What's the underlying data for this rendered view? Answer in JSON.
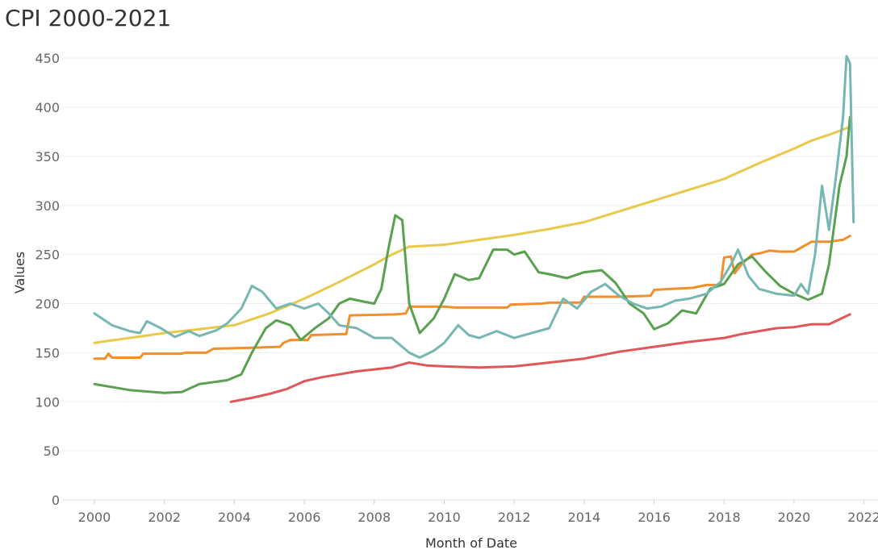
{
  "chart_data": {
    "type": "line",
    "title": "CPI 2000-2021",
    "xlabel": "Month of Date",
    "ylabel": "Values",
    "xlim": [
      1999.1,
      2022.4
    ],
    "ylim": [
      0,
      460
    ],
    "x_ticks": [
      2000,
      2002,
      2004,
      2006,
      2008,
      2010,
      2012,
      2014,
      2016,
      2018,
      2020,
      2022
    ],
    "x_tick_labels": [
      "2000",
      "2002",
      "2004",
      "2006",
      "2008",
      "2010",
      "2012",
      "2014",
      "2016",
      "2018",
      "2020",
      "2022"
    ],
    "y_ticks": [
      0,
      50,
      100,
      150,
      200,
      250,
      300,
      350,
      400,
      450
    ],
    "y_tick_labels": [
      "0",
      "50",
      "100",
      "150",
      "200",
      "250",
      "300",
      "350",
      "400",
      "450"
    ],
    "grid": true,
    "series": [
      {
        "color": "#e9c84a",
        "points": [
          [
            2000.0,
            160
          ],
          [
            2001.0,
            165
          ],
          [
            2002.0,
            170
          ],
          [
            2003.0,
            174
          ],
          [
            2004.0,
            178
          ],
          [
            2005.0,
            190
          ],
          [
            2006.0,
            205
          ],
          [
            2007.0,
            222
          ],
          [
            2008.0,
            240
          ],
          [
            2008.5,
            250
          ],
          [
            2009.0,
            258
          ],
          [
            2009.5,
            259
          ],
          [
            2010.0,
            260
          ],
          [
            2011.0,
            265
          ],
          [
            2012.0,
            270
          ],
          [
            2013.0,
            276
          ],
          [
            2014.0,
            283
          ],
          [
            2015.0,
            294
          ],
          [
            2016.0,
            305
          ],
          [
            2017.0,
            316
          ],
          [
            2018.0,
            327
          ],
          [
            2019.0,
            343
          ],
          [
            2020.0,
            358
          ],
          [
            2020.5,
            366
          ],
          [
            2021.0,
            372
          ],
          [
            2021.6,
            380
          ]
        ]
      },
      {
        "color": "#f28e2b",
        "points": [
          [
            2000.0,
            144
          ],
          [
            2000.3,
            144
          ],
          [
            2000.4,
            149
          ],
          [
            2000.5,
            145
          ],
          [
            2001.0,
            145
          ],
          [
            2001.3,
            145
          ],
          [
            2001.4,
            149
          ],
          [
            2002.5,
            149
          ],
          [
            2002.6,
            150
          ],
          [
            2003.2,
            150
          ],
          [
            2003.4,
            154
          ],
          [
            2004.5,
            155
          ],
          [
            2005.3,
            156
          ],
          [
            2005.4,
            160
          ],
          [
            2005.6,
            163
          ],
          [
            2006.1,
            163
          ],
          [
            2006.2,
            168
          ],
          [
            2007.2,
            169
          ],
          [
            2007.3,
            188
          ],
          [
            2008.6,
            189
          ],
          [
            2008.9,
            190
          ],
          [
            2009.0,
            197
          ],
          [
            2010.0,
            197
          ],
          [
            2010.3,
            196
          ],
          [
            2011.8,
            196
          ],
          [
            2011.9,
            199
          ],
          [
            2012.8,
            200
          ],
          [
            2013.0,
            201
          ],
          [
            2013.9,
            201
          ],
          [
            2014.0,
            207
          ],
          [
            2015.0,
            207
          ],
          [
            2015.9,
            208
          ],
          [
            2016.0,
            214
          ],
          [
            2016.5,
            215
          ],
          [
            2017.1,
            216
          ],
          [
            2017.5,
            219
          ],
          [
            2017.9,
            219
          ],
          [
            2018.0,
            247
          ],
          [
            2018.2,
            248
          ],
          [
            2018.3,
            231
          ],
          [
            2018.5,
            240
          ],
          [
            2018.8,
            250
          ],
          [
            2019.0,
            251
          ],
          [
            2019.3,
            254
          ],
          [
            2019.6,
            253
          ],
          [
            2020.0,
            253
          ],
          [
            2020.1,
            255
          ],
          [
            2020.3,
            259
          ],
          [
            2020.5,
            263
          ],
          [
            2021.0,
            263
          ],
          [
            2021.4,
            265
          ],
          [
            2021.6,
            269
          ]
        ]
      },
      {
        "color": "#e15759",
        "points": [
          [
            2003.9,
            100
          ],
          [
            2004.5,
            104
          ],
          [
            2005.0,
            108
          ],
          [
            2005.5,
            113
          ],
          [
            2006.0,
            121
          ],
          [
            2006.5,
            125
          ],
          [
            2007.0,
            128
          ],
          [
            2007.5,
            131
          ],
          [
            2008.0,
            133
          ],
          [
            2008.5,
            135
          ],
          [
            2009.0,
            140
          ],
          [
            2009.5,
            137
          ],
          [
            2010.0,
            136
          ],
          [
            2011.0,
            135
          ],
          [
            2012.0,
            136
          ],
          [
            2013.0,
            140
          ],
          [
            2014.0,
            144
          ],
          [
            2015.0,
            151
          ],
          [
            2016.0,
            156
          ],
          [
            2017.0,
            161
          ],
          [
            2018.0,
            165
          ],
          [
            2018.5,
            169
          ],
          [
            2019.0,
            172
          ],
          [
            2019.5,
            175
          ],
          [
            2020.0,
            176
          ],
          [
            2020.5,
            179
          ],
          [
            2021.0,
            179
          ],
          [
            2021.6,
            189
          ]
        ]
      },
      {
        "color": "#59a14f",
        "points": [
          [
            2000.0,
            118
          ],
          [
            2001.0,
            112
          ],
          [
            2002.0,
            109
          ],
          [
            2002.5,
            110
          ],
          [
            2003.0,
            118
          ],
          [
            2003.8,
            122
          ],
          [
            2004.2,
            128
          ],
          [
            2004.5,
            150
          ],
          [
            2004.9,
            175
          ],
          [
            2005.2,
            183
          ],
          [
            2005.6,
            178
          ],
          [
            2005.9,
            163
          ],
          [
            2006.3,
            175
          ],
          [
            2006.7,
            185
          ],
          [
            2007.0,
            200
          ],
          [
            2007.3,
            205
          ],
          [
            2007.7,
            202
          ],
          [
            2008.0,
            200
          ],
          [
            2008.2,
            215
          ],
          [
            2008.4,
            255
          ],
          [
            2008.6,
            290
          ],
          [
            2008.8,
            285
          ],
          [
            2009.0,
            200
          ],
          [
            2009.3,
            170
          ],
          [
            2009.7,
            185
          ],
          [
            2010.0,
            205
          ],
          [
            2010.3,
            230
          ],
          [
            2010.7,
            224
          ],
          [
            2011.0,
            226
          ],
          [
            2011.4,
            255
          ],
          [
            2011.8,
            255
          ],
          [
            2012.0,
            250
          ],
          [
            2012.3,
            253
          ],
          [
            2012.7,
            232
          ],
          [
            2013.0,
            230
          ],
          [
            2013.5,
            226
          ],
          [
            2014.0,
            232
          ],
          [
            2014.5,
            234
          ],
          [
            2014.9,
            221
          ],
          [
            2015.3,
            200
          ],
          [
            2015.7,
            190
          ],
          [
            2016.0,
            174
          ],
          [
            2016.4,
            180
          ],
          [
            2016.8,
            193
          ],
          [
            2017.2,
            190
          ],
          [
            2017.6,
            215
          ],
          [
            2018.0,
            220
          ],
          [
            2018.4,
            240
          ],
          [
            2018.8,
            248
          ],
          [
            2019.2,
            232
          ],
          [
            2019.6,
            218
          ],
          [
            2020.0,
            210
          ],
          [
            2020.4,
            204
          ],
          [
            2020.8,
            210
          ],
          [
            2021.0,
            240
          ],
          [
            2021.3,
            320
          ],
          [
            2021.5,
            350
          ],
          [
            2021.6,
            390
          ]
        ]
      },
      {
        "color": "#76b7b2",
        "points": [
          [
            2000.0,
            190
          ],
          [
            2000.5,
            178
          ],
          [
            2001.0,
            172
          ],
          [
            2001.3,
            170
          ],
          [
            2001.5,
            182
          ],
          [
            2001.9,
            175
          ],
          [
            2002.3,
            166
          ],
          [
            2002.7,
            172
          ],
          [
            2003.0,
            167
          ],
          [
            2003.5,
            173
          ],
          [
            2003.8,
            180
          ],
          [
            2004.2,
            195
          ],
          [
            2004.5,
            218
          ],
          [
            2004.8,
            212
          ],
          [
            2005.2,
            195
          ],
          [
            2005.6,
            200
          ],
          [
            2006.0,
            195
          ],
          [
            2006.4,
            200
          ],
          [
            2006.7,
            190
          ],
          [
            2007.0,
            178
          ],
          [
            2007.5,
            175
          ],
          [
            2008.0,
            165
          ],
          [
            2008.5,
            165
          ],
          [
            2009.0,
            150
          ],
          [
            2009.3,
            145
          ],
          [
            2009.7,
            152
          ],
          [
            2010.0,
            160
          ],
          [
            2010.4,
            178
          ],
          [
            2010.7,
            168
          ],
          [
            2011.0,
            165
          ],
          [
            2011.5,
            172
          ],
          [
            2012.0,
            165
          ],
          [
            2012.5,
            170
          ],
          [
            2013.0,
            175
          ],
          [
            2013.4,
            205
          ],
          [
            2013.8,
            195
          ],
          [
            2014.2,
            212
          ],
          [
            2014.6,
            220
          ],
          [
            2015.0,
            208
          ],
          [
            2015.4,
            200
          ],
          [
            2015.8,
            195
          ],
          [
            2016.2,
            197
          ],
          [
            2016.6,
            203
          ],
          [
            2017.0,
            205
          ],
          [
            2017.5,
            210
          ],
          [
            2017.9,
            222
          ],
          [
            2018.2,
            240
          ],
          [
            2018.4,
            255
          ],
          [
            2018.7,
            228
          ],
          [
            2019.0,
            215
          ],
          [
            2019.5,
            210
          ],
          [
            2020.0,
            208
          ],
          [
            2020.2,
            220
          ],
          [
            2020.4,
            210
          ],
          [
            2020.6,
            250
          ],
          [
            2020.8,
            320
          ],
          [
            2021.0,
            275
          ],
          [
            2021.2,
            330
          ],
          [
            2021.4,
            390
          ],
          [
            2021.5,
            452
          ],
          [
            2021.6,
            445
          ],
          [
            2021.7,
            283
          ]
        ]
      }
    ]
  }
}
